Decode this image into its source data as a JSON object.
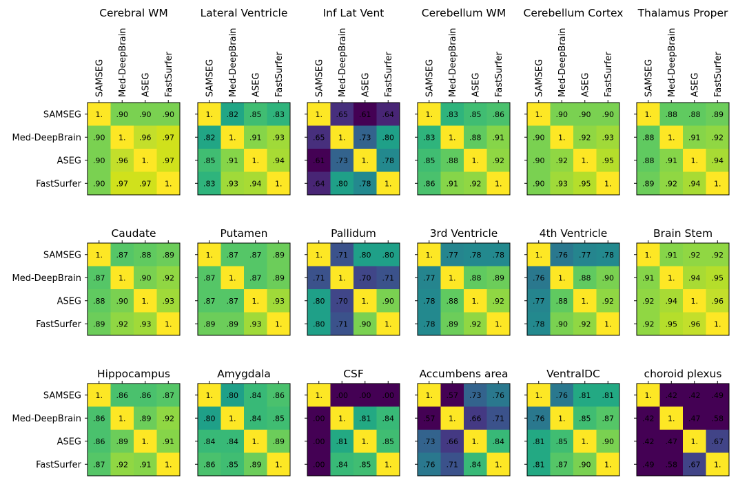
{
  "chart_data": {
    "type": "heatmap",
    "labels": [
      "SAMSEG",
      "Med-DeepBrain",
      "ASEG",
      "FastSurfer"
    ],
    "color_range": [
      0,
      1
    ],
    "cell_colors": {
      "1.": "#fde725",
      ".97": "#d0e11c",
      ".96": "#c3df2b",
      ".95": "#b5de2b",
      ".94": "#a8db34",
      ".93": "#a0da39",
      ".92": "#90d743",
      ".91": "#86d549",
      ".90": "#7ad151",
      ".89": "#6ccd5a",
      ".88": "#60ca60",
      ".87": "#55c667",
      ".86": "#4ac16d",
      ".85": "#40bd72",
      ".84": "#38b977",
      ".83": "#2fb47c",
      ".82": "#21a685",
      ".81": "#23a983",
      ".80": "#1fa088",
      ".78": "#23898e",
      ".77": "#25858e",
      ".76": "#2a788e",
      ".73": "#33638d",
      ".71": "#3b528b",
      ".70": "#404688",
      ".67": "#414487",
      ".66": "#443983",
      ".65": "#472f7d",
      ".64": "#482575",
      ".61": "#440154",
      ".58": "#440154",
      ".57": "#440154",
      ".49": "#440154",
      ".47": "#440154",
      ".42": "#440154",
      ".00": "#440154"
    },
    "panels": [
      {
        "title": "Cerebral WM",
        "cells": [
          [
            "1.",
            ".90",
            ".90",
            ".90"
          ],
          [
            ".90",
            "1.",
            ".96",
            ".97"
          ],
          [
            ".90",
            ".96",
            "1.",
            ".97"
          ],
          [
            ".90",
            ".97",
            ".97",
            "1."
          ]
        ]
      },
      {
        "title": "Lateral Ventricle",
        "cells": [
          [
            "1.",
            ".82",
            ".85",
            ".83"
          ],
          [
            ".82",
            "1.",
            ".91",
            ".93"
          ],
          [
            ".85",
            ".91",
            "1.",
            ".94"
          ],
          [
            ".83",
            ".93",
            ".94",
            "1."
          ]
        ]
      },
      {
        "title": "Inf Lat Vent",
        "cells": [
          [
            "1.",
            ".65",
            ".61",
            ".64"
          ],
          [
            ".65",
            "1.",
            ".73",
            ".80"
          ],
          [
            ".61",
            ".73",
            "1.",
            ".78"
          ],
          [
            ".64",
            ".80",
            ".78",
            "1."
          ]
        ]
      },
      {
        "title": "Cerebellum WM",
        "cells": [
          [
            "1.",
            ".83",
            ".85",
            ".86"
          ],
          [
            ".83",
            "1.",
            ".88",
            ".91"
          ],
          [
            ".85",
            ".88",
            "1.",
            ".92"
          ],
          [
            ".86",
            ".91",
            ".92",
            "1."
          ]
        ]
      },
      {
        "title": "Cerebellum Cortex",
        "cells": [
          [
            "1.",
            ".90",
            ".90",
            ".90"
          ],
          [
            ".90",
            "1.",
            ".92",
            ".93"
          ],
          [
            ".90",
            ".92",
            "1.",
            ".95"
          ],
          [
            ".90",
            ".93",
            ".95",
            "1."
          ]
        ]
      },
      {
        "title": "Thalamus Proper",
        "cells": [
          [
            "1.",
            ".88",
            ".88",
            ".89"
          ],
          [
            ".88",
            "1.",
            ".91",
            ".92"
          ],
          [
            ".88",
            ".91",
            "1.",
            ".94"
          ],
          [
            ".89",
            ".92",
            ".94",
            "1."
          ]
        ]
      },
      {
        "title": "Caudate",
        "cells": [
          [
            "1.",
            ".87",
            ".88",
            ".89"
          ],
          [
            ".87",
            "1.",
            ".90",
            ".92"
          ],
          [
            ".88",
            ".90",
            "1.",
            ".93"
          ],
          [
            ".89",
            ".92",
            ".93",
            "1."
          ]
        ]
      },
      {
        "title": "Putamen",
        "cells": [
          [
            "1.",
            ".87",
            ".87",
            ".89"
          ],
          [
            ".87",
            "1.",
            ".87",
            ".89"
          ],
          [
            ".87",
            ".87",
            "1.",
            ".93"
          ],
          [
            ".89",
            ".89",
            ".93",
            "1."
          ]
        ]
      },
      {
        "title": "Pallidum",
        "cells": [
          [
            "1.",
            ".71",
            ".80",
            ".80"
          ],
          [
            ".71",
            "1.",
            ".70",
            ".71"
          ],
          [
            ".80",
            ".70",
            "1.",
            ".90"
          ],
          [
            ".80",
            ".71",
            ".90",
            "1."
          ]
        ]
      },
      {
        "title": "3rd Ventricle",
        "cells": [
          [
            "1.",
            ".77",
            ".78",
            ".78"
          ],
          [
            ".77",
            "1.",
            ".88",
            ".89"
          ],
          [
            ".78",
            ".88",
            "1.",
            ".92"
          ],
          [
            ".78",
            ".89",
            ".92",
            "1."
          ]
        ]
      },
      {
        "title": "4th Ventricle",
        "cells": [
          [
            "1.",
            ".76",
            ".77",
            ".78"
          ],
          [
            ".76",
            "1.",
            ".88",
            ".90"
          ],
          [
            ".77",
            ".88",
            "1.",
            ".92"
          ],
          [
            ".78",
            ".90",
            ".92",
            "1."
          ]
        ]
      },
      {
        "title": "Brain Stem",
        "cells": [
          [
            "1.",
            ".91",
            ".92",
            ".92"
          ],
          [
            ".91",
            "1.",
            ".94",
            ".95"
          ],
          [
            ".92",
            ".94",
            "1.",
            ".96"
          ],
          [
            ".92",
            ".95",
            ".96",
            "1."
          ]
        ]
      },
      {
        "title": "Hippocampus",
        "cells": [
          [
            "1.",
            ".86",
            ".86",
            ".87"
          ],
          [
            ".86",
            "1.",
            ".89",
            ".92"
          ],
          [
            ".86",
            ".89",
            "1.",
            ".91"
          ],
          [
            ".87",
            ".92",
            ".91",
            "1."
          ]
        ]
      },
      {
        "title": "Amygdala",
        "cells": [
          [
            "1.",
            ".80",
            ".84",
            ".86"
          ],
          [
            ".80",
            "1.",
            ".84",
            ".85"
          ],
          [
            ".84",
            ".84",
            "1.",
            ".89"
          ],
          [
            ".86",
            ".85",
            ".89",
            "1."
          ]
        ]
      },
      {
        "title": "CSF",
        "cells": [
          [
            "1.",
            ".00",
            ".00",
            ".00"
          ],
          [
            ".00",
            "1.",
            ".81",
            ".84"
          ],
          [
            ".00",
            ".81",
            "1.",
            ".85"
          ],
          [
            ".00",
            ".84",
            ".85",
            "1."
          ]
        ]
      },
      {
        "title": "Accumbens area",
        "cells": [
          [
            "1.",
            ".57",
            ".73",
            ".76"
          ],
          [
            ".57",
            "1.",
            ".66",
            ".71"
          ],
          [
            ".73",
            ".66",
            "1.",
            ".84"
          ],
          [
            ".76",
            ".71",
            ".84",
            "1."
          ]
        ]
      },
      {
        "title": "VentralDC",
        "cells": [
          [
            "1.",
            ".76",
            ".81",
            ".81"
          ],
          [
            ".76",
            "1.",
            ".85",
            ".87"
          ],
          [
            ".81",
            ".85",
            "1.",
            ".90"
          ],
          [
            ".81",
            ".87",
            ".90",
            "1."
          ]
        ]
      },
      {
        "title": "choroid plexus",
        "cells": [
          [
            "1.",
            ".42",
            ".42",
            ".49"
          ],
          [
            ".42",
            "1.",
            ".47",
            ".58"
          ],
          [
            ".42",
            ".47",
            "1.",
            ".67"
          ],
          [
            ".49",
            ".58",
            ".67",
            "1."
          ]
        ]
      }
    ]
  }
}
